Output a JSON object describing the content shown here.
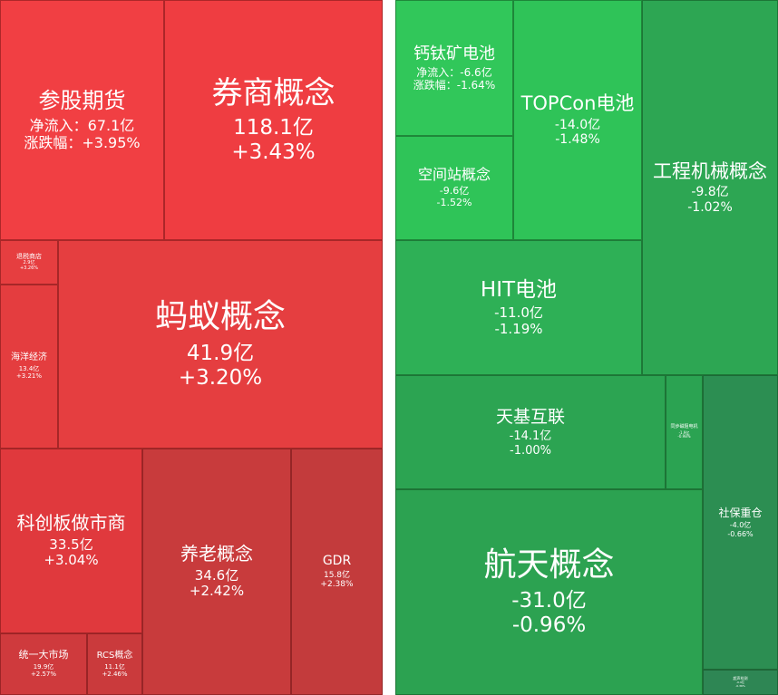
{
  "chart_data": {
    "type": "treemap",
    "panels": [
      {
        "id": "gainers",
        "tiles": [
          {
            "name": "参股期货",
            "inflow": "净流入：67.1亿",
            "change": "涨跌幅：+3.95%",
            "color": "#f13f43"
          },
          {
            "name": "券商概念",
            "inflow": "118.1亿",
            "change": "+3.43%",
            "color": "#ef3d41"
          },
          {
            "name": "退税商店",
            "inflow": "2.9亿",
            "change": "+3.26%",
            "color": "#e63e40"
          },
          {
            "name": "海洋经济",
            "inflow": "13.4亿",
            "change": "+3.21%",
            "color": "#e43d3f"
          },
          {
            "name": "蚂蚁概念",
            "inflow": "41.9亿",
            "change": "+3.20%",
            "color": "#e53e40"
          },
          {
            "name": "科创板做市商",
            "inflow": "33.5亿",
            "change": "+3.04%",
            "color": "#e0393d"
          },
          {
            "name": "养老概念",
            "inflow": "34.6亿",
            "change": "+2.42%",
            "color": "#c83b3c"
          },
          {
            "name": "GDR",
            "inflow": "15.8亿",
            "change": "+2.38%",
            "color": "#c33b3c"
          },
          {
            "name": "统一大市场",
            "inflow": "19.9亿",
            "change": "+2.57%",
            "color": "#cf3a3d"
          },
          {
            "name": "RCS概念",
            "inflow": "11.1亿",
            "change": "+2.46%",
            "color": "#ca3a3c"
          }
        ]
      },
      {
        "id": "decliners",
        "tiles": [
          {
            "name": "钙钛矿电池",
            "inflow": "净流入：-6.6亿",
            "change": "涨跌幅：-1.64%",
            "color": "#31c75a"
          },
          {
            "name": "TOPCon电池",
            "inflow": "-14.0亿",
            "change": "-1.48%",
            "color": "#2fc358"
          },
          {
            "name": "空间站概念",
            "inflow": "-9.6亿",
            "change": "-1.52%",
            "color": "#2fc458"
          },
          {
            "name": "工程机械概念",
            "inflow": "-9.8亿",
            "change": "-1.02%",
            "color": "#2da653"
          },
          {
            "name": "HIT电池",
            "inflow": "-11.0亿",
            "change": "-1.19%",
            "color": "#2eb056"
          },
          {
            "name": "天基互联",
            "inflow": "-14.1亿",
            "change": "-1.00%",
            "color": "#2ca452"
          },
          {
            "name": "同步磁阻电机",
            "inflow": "-1.9亿",
            "change": "-0.98%",
            "color": "#2ba352"
          },
          {
            "name": "社保重仓",
            "inflow": "-4.0亿",
            "change": "-0.66%",
            "color": "#2c8e52"
          },
          {
            "name": "航天概念",
            "inflow": "-31.0亿",
            "change": "-0.96%",
            "color": "#2ca251"
          },
          {
            "name": "超声检测",
            "inflow": "-0.9亿",
            "change": "-0.36%",
            "color": "#2e8654"
          }
        ]
      }
    ]
  }
}
